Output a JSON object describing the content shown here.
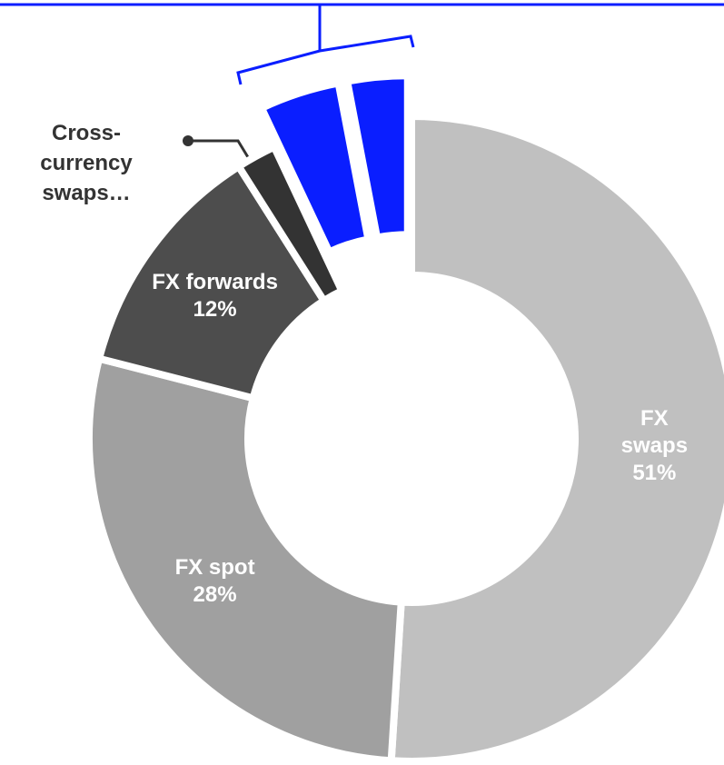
{
  "chart_data": {
    "type": "donut",
    "categories": [
      "FX swaps",
      "FX spot",
      "FX forwards",
      "Cross-currency swaps…",
      null,
      null
    ],
    "values": [
      51,
      28,
      12,
      2,
      4,
      3
    ],
    "value_labels": [
      "51%",
      "28%",
      "12%",
      null,
      null,
      null
    ],
    "colors": [
      "#c0c0c0",
      "#a0a0a0",
      "#4d4d4d",
      "#333333",
      "#0a1eff",
      "#0a1eff"
    ],
    "exploded": [
      false,
      false,
      false,
      false,
      true,
      true
    ]
  }
}
